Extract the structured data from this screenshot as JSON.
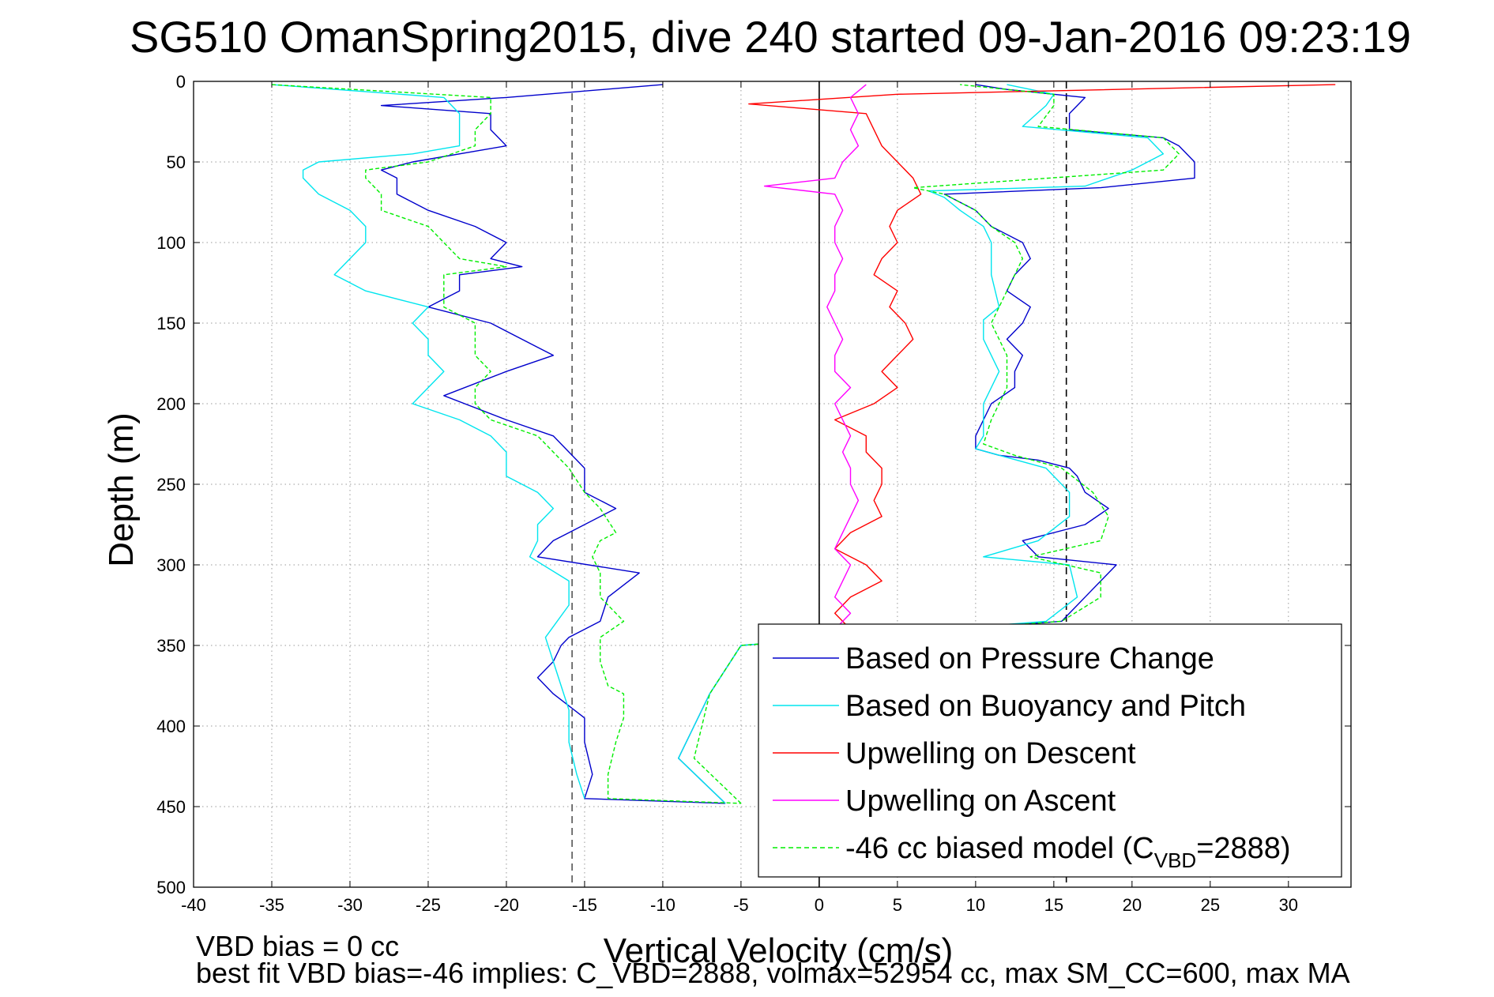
{
  "chart_data": {
    "type": "line",
    "title": "SG510 OmanSpring2015, dive 240 started 09-Jan-2016 09:23:19",
    "xlabel": "Vertical Velocity (cm/s)",
    "ylabel": "Depth (m)",
    "xlim": [
      -40,
      34
    ],
    "ylim": [
      0,
      500
    ],
    "y_reversed": true,
    "grid": true,
    "x_ticks": [
      -40,
      -35,
      -30,
      -25,
      -20,
      -15,
      -10,
      -5,
      0,
      5,
      10,
      15,
      20,
      25,
      30
    ],
    "y_ticks": [
      0,
      50,
      100,
      150,
      200,
      250,
      300,
      350,
      400,
      450,
      500
    ],
    "reference_lines": [
      {
        "x": -15.8,
        "style": "dashed",
        "color": "#555555"
      },
      {
        "x": 15.8,
        "style": "dashed",
        "color": "#000000"
      },
      {
        "x": 0,
        "style": "solid",
        "color": "#000000"
      }
    ],
    "legend_position": "bottom-right",
    "legend": [
      {
        "label": "Based on Pressure Change",
        "color": "#0000cc",
        "dash": false
      },
      {
        "label": "Based on Buoyancy and Pitch",
        "color": "#00e5ee",
        "dash": false
      },
      {
        "label": "Upwelling on Descent",
        "color": "#ff0000",
        "dash": false
      },
      {
        "label": "Upwelling on Ascent",
        "color": "#ff00ff",
        "dash": false
      },
      {
        "label": "-46 cc biased model (C",
        "sub": "VBD",
        "tail": "=2888)",
        "color": "#00ee00",
        "dash": true
      }
    ],
    "series": [
      {
        "name": "Based on Pressure Change",
        "color": "#0000cc",
        "descent": {
          "depth": [
            2,
            10,
            15,
            20,
            30,
            40,
            50,
            55,
            60,
            70,
            80,
            90,
            100,
            110,
            115,
            120,
            130,
            140,
            150,
            165,
            170,
            180,
            195,
            210,
            220,
            240,
            255,
            265,
            280,
            285,
            295,
            305,
            320,
            335,
            345,
            350,
            360,
            370,
            380,
            395,
            410,
            430,
            445,
            448
          ],
          "v": [
            -10,
            -20,
            -28,
            -21,
            -21,
            -20,
            -26,
            -28,
            -27,
            -27,
            -25,
            -22,
            -20,
            -21,
            -19,
            -23,
            -23,
            -25,
            -21,
            -18,
            -17,
            -20,
            -24,
            -20,
            -17,
            -15,
            -15,
            -13,
            -16,
            -17,
            -18,
            -11.5,
            -13.5,
            -14,
            -16,
            -16.5,
            -17,
            -18,
            -17,
            -15,
            -15,
            -14.5,
            -15,
            -6
          ]
        },
        "ascent": {
          "depth": [
            448,
            420,
            400,
            380,
            350,
            335,
            320,
            310,
            300,
            295,
            285,
            275,
            265,
            255,
            245,
            240,
            235,
            232,
            228,
            220,
            210,
            200,
            190,
            180,
            170,
            160,
            150,
            140,
            130,
            120,
            110,
            100,
            90,
            80,
            75,
            70,
            66,
            60,
            50,
            40,
            35,
            30,
            25,
            20,
            15,
            10,
            5,
            2
          ],
          "v": [
            -6,
            -9,
            -8,
            -7,
            -5,
            15.5,
            17,
            18,
            19,
            14,
            13,
            17,
            18.5,
            17,
            16.5,
            16,
            14,
            11.5,
            10,
            10,
            10.5,
            11,
            12.5,
            12.5,
            13,
            12,
            13,
            13.5,
            12,
            12.5,
            13.5,
            13,
            11,
            10,
            9,
            8,
            18,
            24,
            24,
            23,
            22,
            16,
            16,
            16,
            16.5,
            17,
            12,
            10
          ]
        }
      },
      {
        "name": "Based on Buoyancy and Pitch",
        "color": "#00e5ee",
        "descent": {
          "depth": [
            2,
            10,
            20,
            30,
            40,
            45,
            50,
            55,
            60,
            70,
            80,
            90,
            100,
            110,
            120,
            130,
            140,
            150,
            160,
            170,
            180,
            190,
            200,
            210,
            220,
            230,
            245,
            255,
            265,
            275,
            285,
            295,
            310,
            325,
            345,
            360,
            375,
            390,
            410,
            430,
            445
          ],
          "v": [
            -35,
            -24,
            -23,
            -23,
            -23,
            -26,
            -32,
            -33,
            -33,
            -32,
            -30,
            -29,
            -29,
            -30,
            -31,
            -29,
            -25,
            -26,
            -25,
            -25,
            -24,
            -25,
            -26,
            -23,
            -21,
            -20,
            -20,
            -18,
            -17,
            -18,
            -18,
            -18.5,
            -16,
            -16,
            -17.5,
            -17,
            -16.5,
            -16,
            -16,
            -15.5,
            -15
          ]
        },
        "ascent": {
          "depth": [
            448,
            420,
            400,
            380,
            350,
            335,
            320,
            300,
            295,
            285,
            270,
            255,
            240,
            228,
            220,
            200,
            180,
            160,
            148,
            140,
            120,
            100,
            90,
            80,
            72,
            68,
            65,
            55,
            45,
            35,
            28,
            15,
            8,
            2
          ],
          "v": [
            -6,
            -9,
            -8,
            -7,
            -5,
            14.5,
            16.5,
            16,
            10.5,
            14,
            16,
            16,
            14.5,
            10,
            10.5,
            10.5,
            11.5,
            10.5,
            10.5,
            11.5,
            11,
            11,
            10.5,
            9,
            8,
            7,
            17,
            20,
            22,
            21,
            13,
            14.5,
            15,
            12
          ]
        }
      },
      {
        "name": "Upwelling on Descent",
        "color": "#ff0000",
        "descent": {
          "depth": [
            2,
            8,
            14,
            20,
            30,
            40,
            50,
            60,
            70,
            80,
            90,
            100,
            110,
            120,
            130,
            140,
            150,
            160,
            170,
            180,
            190,
            200,
            210,
            220,
            230,
            240,
            250,
            260,
            270,
            280,
            290,
            300,
            310,
            320,
            330,
            340
          ],
          "v": [
            33,
            5,
            -4.5,
            3,
            3.5,
            4,
            5,
            6,
            6.5,
            5,
            4.5,
            5,
            4,
            3.5,
            5,
            4.5,
            5.5,
            6,
            5,
            4,
            5,
            3.5,
            1,
            3,
            3,
            4,
            4,
            3.5,
            4,
            2,
            1,
            3,
            4,
            2,
            1,
            2
          ]
        }
      },
      {
        "name": "Upwelling on Ascent",
        "color": "#ff00ff",
        "ascent": {
          "depth": [
            2,
            10,
            20,
            30,
            40,
            50,
            60,
            65,
            70,
            80,
            90,
            100,
            110,
            120,
            130,
            140,
            150,
            160,
            170,
            180,
            190,
            200,
            210,
            220,
            230,
            240,
            250,
            260,
            270,
            280,
            290,
            300,
            310,
            320,
            330,
            340
          ],
          "v": [
            3,
            2,
            2.5,
            2,
            2.5,
            1.5,
            1,
            -3.5,
            1,
            1.5,
            1,
            1,
            1.5,
            1,
            1,
            0.5,
            1,
            1.5,
            1,
            1,
            2,
            1,
            1.5,
            2,
            1.5,
            2,
            2,
            2.5,
            2,
            1.5,
            1,
            2,
            1.5,
            1,
            2,
            1
          ]
        }
      },
      {
        "name": "-46 cc biased model (C_VBD=2888)",
        "color": "#00ee00",
        "dash": true,
        "descent": {
          "depth": [
            2,
            10,
            20,
            30,
            40,
            50,
            55,
            60,
            70,
            80,
            90,
            100,
            110,
            115,
            120,
            130,
            140,
            150,
            160,
            170,
            180,
            190,
            200,
            210,
            220,
            230,
            240,
            255,
            265,
            280,
            285,
            295,
            305,
            320,
            335,
            345,
            360,
            375,
            380,
            395,
            410,
            430,
            445,
            448
          ],
          "v": [
            -35,
            -21,
            -21,
            -22,
            -22,
            -25,
            -29,
            -29,
            -28,
            -28,
            -25,
            -24,
            -23,
            -20,
            -24,
            -24,
            -24,
            -22,
            -22,
            -22,
            -21,
            -22,
            -22,
            -21,
            -18,
            -17,
            -16,
            -15,
            -14,
            -13,
            -14,
            -14.5,
            -14,
            -14,
            -12.5,
            -14,
            -14,
            -13.5,
            -12.5,
            -12.5,
            -13,
            -13.5,
            -13.5,
            -5
          ]
        },
        "ascent": {
          "depth": [
            448,
            420,
            400,
            380,
            350,
            335,
            320,
            305,
            295,
            285,
            270,
            255,
            240,
            232,
            225,
            210,
            190,
            170,
            150,
            130,
            110,
            100,
            90,
            80,
            70,
            66,
            55,
            45,
            35,
            28,
            15,
            8,
            2
          ],
          "v": [
            -5,
            -8,
            -7.5,
            -7,
            -5,
            15.5,
            18,
            18,
            13.5,
            18,
            18.5,
            17.5,
            15.5,
            12.5,
            10.5,
            11,
            12,
            12,
            11,
            12,
            13,
            12.5,
            11,
            10,
            8,
            6,
            22,
            23,
            22,
            14,
            15,
            15,
            9
          ]
        }
      }
    ]
  },
  "notes": {
    "line1": "VBD bias = 0 cc",
    "line2": "best fit VBD bias=-46 implies: C_VBD=2888, volmax=52954 cc, max SM_CC=600, max MA"
  }
}
